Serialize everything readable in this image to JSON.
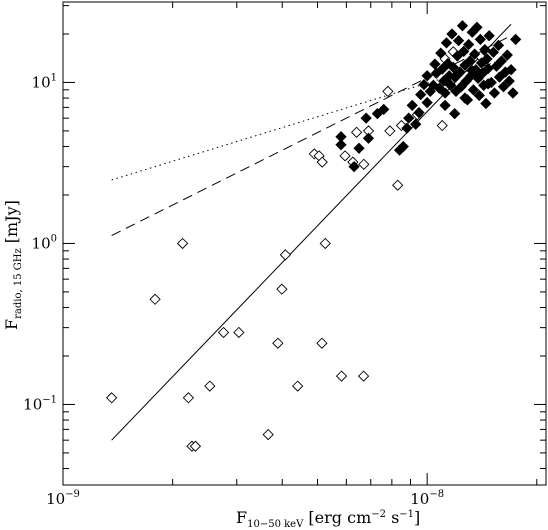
{
  "chart_data": {
    "type": "scatter",
    "title": "",
    "xlabel_main": "F",
    "xlabel_sub": "10−50 keV",
    "xlabel_rest": " [erg cm",
    "xlabel_exp1": "−2",
    "xlabel_mid": " s",
    "xlabel_exp2": "−1",
    "xlabel_end": "]",
    "ylabel_main": "F",
    "ylabel_sub": "radio, 15 GHz",
    "ylabel_rest": " [mJy]",
    "xscale": "log",
    "yscale": "log",
    "xlim": [
      1e-09,
      2.12e-08
    ],
    "ylim": [
      0.0316,
      31.6
    ],
    "x_ticks": [
      {
        "value": 1e-09,
        "base": "10",
        "exp": "−9"
      },
      {
        "value": 1e-08,
        "base": "10",
        "exp": "−8"
      }
    ],
    "y_ticks": [
      {
        "value": 0.1,
        "base": "10",
        "exp": "−1"
      },
      {
        "value": 1,
        "base": "10",
        "exp": "0"
      },
      {
        "value": 10,
        "base": "10",
        "exp": "1"
      }
    ],
    "series": [
      {
        "marker": "open-diamond",
        "points": [
          [
            1.36e-09,
            0.11
          ],
          [
            1.79e-09,
            0.45
          ],
          [
            2.13e-09,
            1.0
          ],
          [
            2.21e-09,
            0.11
          ],
          [
            2.26e-09,
            0.055
          ],
          [
            2.31e-09,
            0.055
          ],
          [
            2.53e-09,
            0.13
          ],
          [
            2.76e-09,
            0.28
          ],
          [
            3.04e-09,
            0.28
          ],
          [
            3.66e-09,
            0.065
          ],
          [
            3.89e-09,
            0.24
          ],
          [
            3.99e-09,
            0.52
          ],
          [
            4.08e-09,
            0.85
          ],
          [
            4.41e-09,
            0.13
          ],
          [
            5.14e-09,
            0.24
          ],
          [
            5.25e-09,
            1.0
          ],
          [
            5.82e-09,
            0.15
          ],
          [
            6.69e-09,
            0.15
          ],
          [
            4.9e-09,
            3.6
          ],
          [
            5.05e-09,
            3.5
          ],
          [
            5.15e-09,
            3.2
          ],
          [
            5.95e-09,
            3.5
          ],
          [
            6.25e-09,
            3.2
          ],
          [
            6.4e-09,
            4.9
          ],
          [
            6.7e-09,
            3.1
          ],
          [
            6.9e-09,
            5.0
          ],
          [
            7.9e-09,
            5.0
          ],
          [
            8.5e-09,
            5.4
          ],
          [
            8.3e-09,
            2.3
          ],
          [
            7.8e-09,
            8.8
          ],
          [
            9.4e-09,
            6.3
          ],
          [
            1.1e-08,
            5.4
          ],
          [
            1.12e-08,
            14.0
          ],
          [
            1.18e-08,
            15.5
          ],
          [
            1.4e-08,
            14.5
          ]
        ]
      },
      {
        "marker": "filled-diamond",
        "points": [
          [
            6.5e-09,
            3.9
          ],
          [
            6.3e-09,
            3.0
          ],
          [
            6.9e-09,
            4.5
          ],
          [
            7.3e-09,
            6.4
          ],
          [
            5.8e-09,
            4.6
          ],
          [
            5.8e-09,
            4.1
          ],
          [
            6.8e-09,
            6.0
          ],
          [
            7.6e-09,
            6.8
          ],
          [
            8.4e-09,
            3.8
          ],
          [
            8.6e-09,
            4.0
          ],
          [
            8.8e-09,
            5.2
          ],
          [
            8.9e-09,
            6.0
          ],
          [
            9.1e-09,
            7.2
          ],
          [
            9.3e-09,
            5.5
          ],
          [
            9.5e-09,
            6.5
          ],
          [
            9.6e-09,
            8.4
          ],
          [
            9.8e-09,
            9.7
          ],
          [
            1e-08,
            7.5
          ],
          [
            1e-08,
            11.0
          ],
          [
            1.02e-08,
            8.8
          ],
          [
            1.04e-08,
            9.6
          ],
          [
            1.05e-08,
            13.0
          ],
          [
            1.06e-08,
            11.4
          ],
          [
            1.08e-08,
            9.2
          ],
          [
            1.09e-08,
            15.2
          ],
          [
            1.1e-08,
            12.1
          ],
          [
            1.11e-08,
            10.2
          ],
          [
            1.12e-08,
            8.6
          ],
          [
            1.13e-08,
            17.6
          ],
          [
            1.14e-08,
            13.1
          ],
          [
            1.15e-08,
            11.0
          ],
          [
            1.16e-08,
            9.6
          ],
          [
            1.17e-08,
            20.0
          ],
          [
            1.18e-08,
            12.4
          ],
          [
            1.19e-08,
            10.8
          ],
          [
            1.2e-08,
            8.8
          ],
          [
            1.21e-08,
            14.6
          ],
          [
            1.22e-08,
            18.2
          ],
          [
            1.23e-08,
            11.6
          ],
          [
            1.24e-08,
            9.4
          ],
          [
            1.25e-08,
            22.5
          ],
          [
            1.26e-08,
            15.6
          ],
          [
            1.27e-08,
            12.8
          ],
          [
            1.28e-08,
            10.2
          ],
          [
            1.29e-08,
            7.8
          ],
          [
            1.3e-08,
            17.2
          ],
          [
            1.31e-08,
            13.6
          ],
          [
            1.32e-08,
            11.0
          ],
          [
            1.33e-08,
            20.5
          ],
          [
            1.34e-08,
            9.0
          ],
          [
            1.35e-08,
            15.0
          ],
          [
            1.36e-08,
            12.0
          ],
          [
            1.37e-08,
            22.0
          ],
          [
            1.38e-08,
            10.6
          ],
          [
            1.39e-08,
            8.3
          ],
          [
            1.4e-08,
            18.5
          ],
          [
            1.41e-08,
            13.2
          ],
          [
            1.42e-08,
            11.4
          ],
          [
            1.43e-08,
            9.6
          ],
          [
            1.44e-08,
            16.0
          ],
          [
            1.45e-08,
            7.4
          ],
          [
            1.46e-08,
            14.0
          ],
          [
            1.47e-08,
            12.2
          ],
          [
            1.48e-08,
            19.5
          ],
          [
            1.5e-08,
            10.0
          ],
          [
            1.52e-08,
            15.4
          ],
          [
            1.53e-08,
            8.6
          ],
          [
            1.55e-08,
            12.6
          ],
          [
            1.57e-08,
            17.0
          ],
          [
            1.58e-08,
            10.8
          ],
          [
            1.6e-08,
            13.6
          ],
          [
            1.62e-08,
            9.4
          ],
          [
            1.64e-08,
            11.6
          ],
          [
            1.66e-08,
            14.8
          ],
          [
            1.68e-08,
            10.2
          ],
          [
            1.7e-08,
            12.0
          ],
          [
            1.72e-08,
            8.6
          ],
          [
            1.75e-08,
            18.5
          ],
          [
            1.12e-08,
            7.2
          ],
          [
            1.19e-08,
            6.4
          ],
          [
            1.15e-08,
            9.8
          ],
          [
            1.27e-08,
            8.0
          ],
          [
            1.33e-08,
            11.8
          ],
          [
            1.47e-08,
            9.8
          ]
        ]
      }
    ],
    "lines": [
      {
        "style": "solid",
        "points": [
          [
            1.36e-09,
            0.06
          ],
          [
            1.7e-08,
            23.0
          ]
        ]
      },
      {
        "style": "dashed",
        "points": [
          [
            1.36e-09,
            1.12
          ],
          [
            1.7e-08,
            19.5
          ]
        ]
      },
      {
        "style": "dotted",
        "points": [
          [
            1.36e-09,
            2.48
          ],
          [
            1.7e-08,
            14.3
          ]
        ]
      }
    ]
  }
}
